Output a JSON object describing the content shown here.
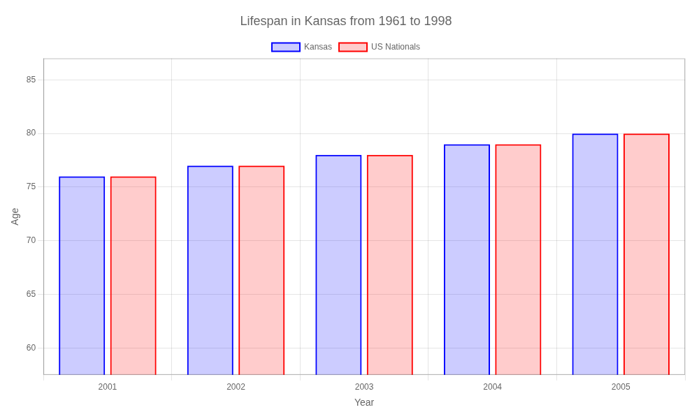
{
  "chart_data": {
    "type": "bar",
    "title": "Lifespan in Kansas from 1961 to 1998",
    "xlabel": "Year",
    "ylabel": "Age",
    "categories": [
      "2001",
      "2002",
      "2003",
      "2004",
      "2005"
    ],
    "series": [
      {
        "name": "Kansas",
        "color": "#0000ff",
        "values": [
          76,
          77,
          78,
          79,
          80
        ]
      },
      {
        "name": "US Nationals",
        "color": "#ff0000",
        "values": [
          76,
          77,
          78,
          79,
          80
        ]
      }
    ],
    "ylim": [
      57.5,
      87
    ],
    "yticks": [
      60,
      65,
      70,
      75,
      80,
      85
    ],
    "grid": true,
    "legend": "top"
  }
}
